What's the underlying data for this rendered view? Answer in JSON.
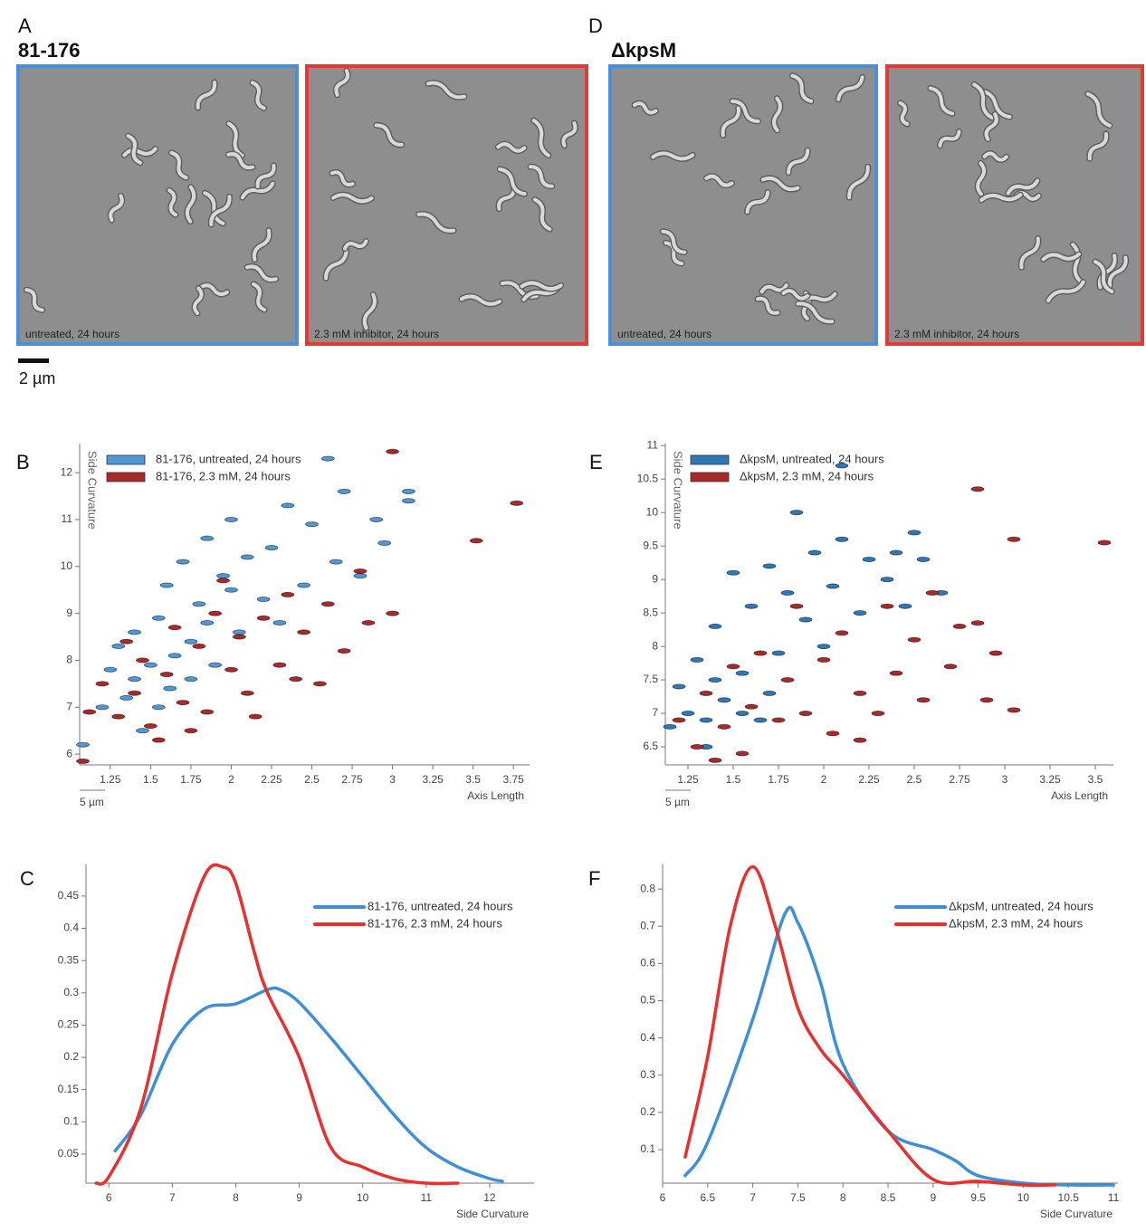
{
  "images": [
    {
      "label": "A",
      "title": "81-176",
      "frames": [
        {
          "caption": "untreated, 24 hours",
          "border": "#4a90d9"
        },
        {
          "caption": "2.3 mM inhibitor, 24 hours",
          "border": "#e53935"
        }
      ]
    },
    {
      "label": "D",
      "title": "ΔkpsM",
      "frames": [
        {
          "caption": "untreated, 24 hours",
          "border": "#4a90d9"
        },
        {
          "caption": "2.3 mM inhibitor, 24 hours",
          "border": "#e53935"
        }
      ]
    }
  ],
  "scale_bar": "2 µm",
  "chart_data": [
    {
      "panel": "B",
      "type": "scatter",
      "x_label": "Axis Length",
      "y_label": "Side Curvature",
      "scale_label": "5 µm",
      "xlim": [
        1.06,
        3.85
      ],
      "ylim": [
        5.77,
        12.62
      ],
      "xticks": [
        1.25,
        1.5,
        1.75,
        2,
        2.25,
        2.5,
        2.75,
        3,
        3.25,
        3.5,
        3.75
      ],
      "yticks": [
        6,
        7,
        8,
        9,
        10,
        11,
        12
      ],
      "series": [
        {
          "name": "81-176, untreated, 24 hours",
          "color": "#4f97d6",
          "x": [
            1.08,
            1.2,
            1.25,
            1.3,
            1.35,
            1.4,
            1.45,
            1.5,
            1.55,
            1.6,
            1.62,
            1.7,
            1.75,
            1.8,
            1.85,
            1.9,
            1.95,
            2.0,
            2.05,
            2.1,
            2.2,
            2.25,
            2.3,
            2.35,
            2.45,
            2.5,
            2.6,
            2.65,
            2.7,
            2.8,
            2.9,
            2.95,
            3.1,
            3.1,
            1.4,
            1.55,
            1.65,
            1.75,
            1.85,
            2.0
          ],
          "values": [
            6.2,
            7.0,
            7.8,
            8.3,
            7.2,
            8.6,
            6.5,
            7.9,
            8.9,
            9.6,
            7.4,
            10.1,
            8.4,
            9.2,
            10.6,
            7.9,
            9.8,
            11.0,
            8.6,
            10.2,
            9.3,
            10.4,
            8.8,
            11.3,
            9.6,
            10.9,
            12.3,
            10.1,
            11.6,
            9.8,
            11.0,
            10.5,
            11.4,
            11.6,
            7.6,
            7.0,
            8.1,
            7.6,
            8.8,
            9.5
          ]
        },
        {
          "name": "81-176, 2.3 mM, 24 hours",
          "color": "#a82a2a",
          "x": [
            1.08,
            1.12,
            1.2,
            1.3,
            1.4,
            1.45,
            1.5,
            1.6,
            1.65,
            1.7,
            1.8,
            1.85,
            1.9,
            2.0,
            2.05,
            2.1,
            2.2,
            2.3,
            2.35,
            2.45,
            2.55,
            2.6,
            2.7,
            2.8,
            2.85,
            3.0,
            3.0,
            3.52,
            3.77,
            1.55,
            1.75,
            2.15,
            2.4,
            1.35,
            1.95
          ],
          "values": [
            5.85,
            6.9,
            7.5,
            6.8,
            7.3,
            8.0,
            6.6,
            7.7,
            8.7,
            7.1,
            8.3,
            6.9,
            9.0,
            7.8,
            8.5,
            7.3,
            8.9,
            7.9,
            9.4,
            8.6,
            7.5,
            9.2,
            8.2,
            9.9,
            8.8,
            9.0,
            12.45,
            10.55,
            11.35,
            6.3,
            6.5,
            6.8,
            7.6,
            8.4,
            9.7
          ]
        }
      ]
    },
    {
      "panel": "E",
      "type": "scatter",
      "x_label": "Axis Length",
      "y_label": "Side Curvature",
      "scale_label": "5 µm",
      "xlim": [
        1.125,
        3.6
      ],
      "ylim": [
        6.23,
        11.03
      ],
      "xticks": [
        1.25,
        1.5,
        1.75,
        2,
        2.25,
        2.5,
        2.75,
        3,
        3.25,
        3.5
      ],
      "yticks": [
        6.5,
        7,
        7.5,
        8,
        8.5,
        9,
        9.5,
        10,
        10.5,
        11
      ],
      "series": [
        {
          "name": "ΔkpsM, untreated, 24 hours",
          "color": "#2f78b8",
          "x": [
            1.15,
            1.2,
            1.25,
            1.3,
            1.35,
            1.4,
            1.45,
            1.5,
            1.55,
            1.6,
            1.65,
            1.7,
            1.75,
            1.8,
            1.85,
            1.9,
            1.95,
            2.0,
            2.05,
            2.1,
            2.2,
            2.25,
            2.35,
            2.4,
            2.45,
            2.5,
            2.55,
            2.65,
            2.1,
            1.4,
            1.55,
            1.7,
            1.35
          ],
          "values": [
            6.8,
            7.4,
            7.0,
            7.8,
            6.5,
            8.3,
            7.2,
            9.1,
            7.6,
            8.6,
            6.9,
            9.2,
            7.9,
            8.8,
            10.0,
            8.4,
            9.4,
            8.0,
            8.9,
            9.6,
            8.5,
            9.3,
            9.0,
            9.4,
            8.6,
            9.7,
            9.3,
            8.8,
            10.7,
            7.5,
            7.0,
            7.3,
            6.9
          ]
        },
        {
          "name": "ΔkpsM, 2.3 mM, 24 hours",
          "color": "#a82a2a",
          "x": [
            1.2,
            1.3,
            1.35,
            1.45,
            1.5,
            1.55,
            1.6,
            1.65,
            1.75,
            1.8,
            1.9,
            2.0,
            2.05,
            2.1,
            2.2,
            2.3,
            2.35,
            2.4,
            2.5,
            2.55,
            2.6,
            2.7,
            2.75,
            2.85,
            2.9,
            2.95,
            3.05,
            2.85,
            3.05,
            3.55,
            1.4,
            2.2,
            1.85
          ],
          "values": [
            6.9,
            6.5,
            7.3,
            6.8,
            7.7,
            6.4,
            7.1,
            7.9,
            6.9,
            7.5,
            7.0,
            7.8,
            6.7,
            8.2,
            7.3,
            7.0,
            8.6,
            7.6,
            8.1,
            7.2,
            8.8,
            7.7,
            8.3,
            8.35,
            7.2,
            7.9,
            7.05,
            10.35,
            9.6,
            9.55,
            6.3,
            6.6,
            8.6
          ]
        }
      ]
    },
    {
      "panel": "C",
      "type": "line",
      "x_label": "Side Curvature",
      "xlim": [
        5.64,
        12.7
      ],
      "ylim": [
        0.005,
        0.499
      ],
      "xticks": [
        6,
        7,
        8,
        9,
        10,
        11,
        12
      ],
      "yticks": [
        0.05,
        0.1,
        0.15,
        0.2,
        0.25,
        0.3,
        0.35,
        0.4,
        0.45
      ],
      "series": [
        {
          "name": "81-176, untreated, 24 hours",
          "color": "#3f8fd6",
          "x": [
            6.1,
            6.5,
            7,
            7.5,
            8,
            8.5,
            8.7,
            9,
            9.5,
            10,
            10.5,
            11,
            11.5,
            12,
            12.2
          ],
          "values": [
            0.055,
            0.11,
            0.22,
            0.275,
            0.283,
            0.305,
            0.305,
            0.285,
            0.23,
            0.17,
            0.11,
            0.06,
            0.03,
            0.012,
            0.008
          ]
        },
        {
          "name": "81-176, 2.3 mM, 24 hours",
          "color": "#e8302e",
          "x": [
            5.8,
            6,
            6.5,
            7,
            7.5,
            7.8,
            8,
            8.3,
            8.5,
            9,
            9.5,
            10,
            10.5,
            11,
            11.5
          ],
          "values": [
            0.005,
            0.015,
            0.12,
            0.33,
            0.48,
            0.495,
            0.47,
            0.36,
            0.3,
            0.2,
            0.06,
            0.03,
            0.012,
            0.005,
            0.005
          ]
        }
      ]
    },
    {
      "panel": "F",
      "type": "line",
      "x_label": "Side Curvature",
      "xlim": [
        6,
        11.05
      ],
      "ylim": [
        0.01,
        0.866
      ],
      "xticks": [
        6,
        6.5,
        7,
        7.5,
        8,
        8.5,
        9,
        9.5,
        10,
        10.5,
        11
      ],
      "yticks": [
        0.1,
        0.2,
        0.3,
        0.4,
        0.5,
        0.6,
        0.7,
        0.8
      ],
      "series": [
        {
          "name": "ΔkpsM, untreated, 24 hours",
          "color": "#3f8fd6",
          "x": [
            6.25,
            6.5,
            7,
            7.35,
            7.5,
            7.75,
            8,
            8.5,
            9,
            9.25,
            9.5,
            10,
            10.5,
            11
          ],
          "values": [
            0.03,
            0.12,
            0.45,
            0.73,
            0.71,
            0.55,
            0.33,
            0.15,
            0.1,
            0.07,
            0.03,
            0.01,
            0.005,
            0.005
          ]
        },
        {
          "name": "ΔkpsM, 2.3 mM, 24 hours",
          "color": "#e8302e",
          "x": [
            6.25,
            6.5,
            6.75,
            7,
            7.25,
            7.5,
            7.75,
            8,
            8.5,
            9,
            9.5,
            10,
            10.35
          ],
          "values": [
            0.08,
            0.35,
            0.7,
            0.86,
            0.7,
            0.48,
            0.37,
            0.3,
            0.15,
            0.02,
            0.015,
            0.005,
            0.005
          ]
        }
      ]
    }
  ]
}
